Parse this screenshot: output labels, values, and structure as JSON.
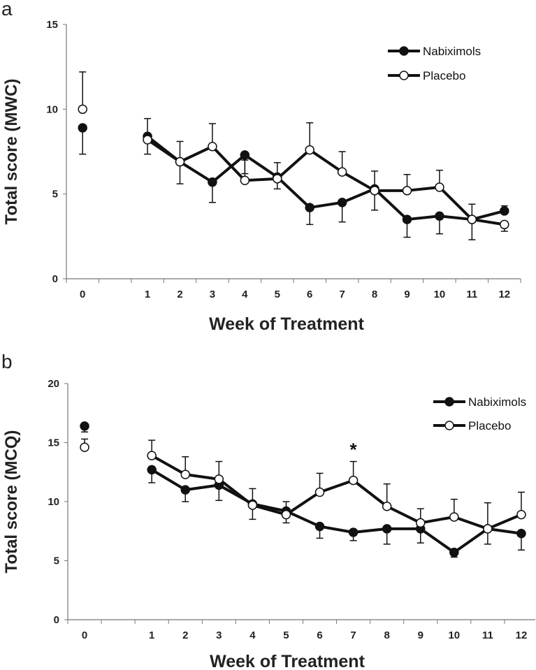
{
  "chart_data": [
    {
      "type": "line",
      "panel_label": "a",
      "xlabel": "Week of Treatment",
      "ylabel": "Total score (MWC)",
      "categories": [
        "0",
        "",
        "1",
        "2",
        "3",
        "4",
        "5",
        "6",
        "7",
        "8",
        "9",
        "10",
        "11",
        "12"
      ],
      "ylim": [
        0,
        15
      ],
      "yticks": [
        0,
        5,
        10,
        15
      ],
      "grid": false,
      "legend_position": "top-right",
      "series": [
        {
          "name": "Nabiximols",
          "marker": "filled-circle",
          "values": [
            8.9,
            null,
            8.4,
            6.9,
            5.7,
            7.3,
            6.0,
            4.2,
            4.5,
            5.3,
            3.5,
            3.7,
            3.5,
            4.0
          ],
          "error": [
            1.55,
            null,
            1.05,
            1.3,
            1.2,
            1.1,
            0.85,
            1.0,
            1.15,
            1.05,
            1.05,
            1.05,
            0.9,
            0.3
          ],
          "error_dir": [
            "down",
            null,
            "up",
            "down",
            "down",
            "down",
            "up",
            "down",
            "down",
            "up",
            "down",
            "down",
            "up",
            "up"
          ]
        },
        {
          "name": "Placebo",
          "marker": "open-circle",
          "values": [
            10.0,
            null,
            8.2,
            6.9,
            7.8,
            5.8,
            5.9,
            7.6,
            6.3,
            5.2,
            5.2,
            5.4,
            3.5,
            3.2
          ],
          "error": [
            2.2,
            null,
            0.85,
            1.2,
            1.35,
            1.2,
            0.6,
            1.6,
            1.2,
            1.15,
            0.95,
            1.0,
            1.2,
            0.4
          ],
          "error_dir": [
            "up",
            null,
            "down",
            "up",
            "up",
            "up",
            "down",
            "up",
            "up",
            "down",
            "up",
            "up",
            "down",
            "down"
          ]
        }
      ],
      "annotations": []
    },
    {
      "type": "line",
      "panel_label": "b",
      "xlabel": "Week of Treatment",
      "ylabel": "Total score (MCQ)",
      "categories": [
        "0",
        "",
        "1",
        "2",
        "3",
        "4",
        "5",
        "6",
        "7",
        "8",
        "9",
        "10",
        "11",
        "12"
      ],
      "ylim": [
        0,
        20
      ],
      "yticks": [
        0,
        5,
        10,
        15,
        20
      ],
      "grid": false,
      "legend_position": "top-right",
      "series": [
        {
          "name": "Nabiximols",
          "marker": "filled-circle",
          "values": [
            16.4,
            null,
            12.7,
            11.0,
            11.4,
            9.8,
            9.2,
            7.9,
            7.4,
            7.7,
            7.7,
            5.7,
            7.7,
            7.3
          ],
          "error": [
            0.5,
            null,
            1.1,
            1.0,
            1.3,
            1.3,
            1.0,
            1.0,
            0.7,
            1.3,
            1.2,
            0.4,
            1.3,
            1.4
          ],
          "error_dir": [
            "down",
            null,
            "down",
            "down",
            "down",
            "down",
            "down",
            "down",
            "down",
            "down",
            "down",
            "down",
            "down",
            "down"
          ]
        },
        {
          "name": "Placebo",
          "marker": "open-circle",
          "values": [
            14.6,
            null,
            13.9,
            12.3,
            11.9,
            9.7,
            8.9,
            10.8,
            11.8,
            9.6,
            8.2,
            8.7,
            7.7,
            8.9
          ],
          "error": [
            0.7,
            null,
            1.3,
            1.5,
            1.5,
            1.4,
            1.1,
            1.6,
            1.6,
            1.9,
            1.2,
            1.5,
            2.2,
            1.9
          ],
          "error_dir": [
            "up",
            null,
            "up",
            "up",
            "up",
            "up",
            "up",
            "up",
            "up",
            "up",
            "up",
            "up",
            "up",
            "up"
          ]
        }
      ],
      "annotations": [
        {
          "text": "*",
          "category": "7"
        }
      ]
    }
  ]
}
